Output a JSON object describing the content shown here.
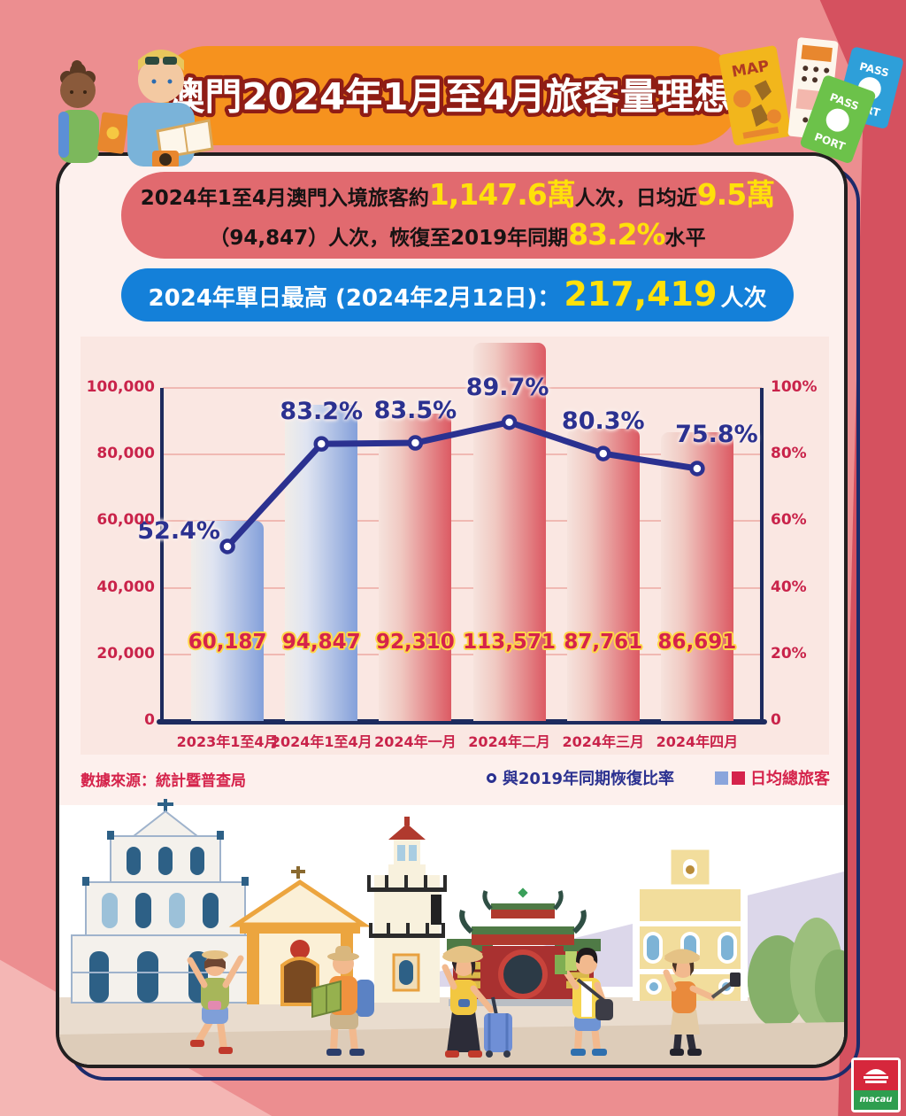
{
  "banner": {
    "title": "澳門2024年1月至4月旅客量理想"
  },
  "summary": {
    "line1_prefix": "2024年1至4月澳門入境旅客約",
    "line1_highlight1": "1,147.6萬",
    "line1_mid": "人次，日均近",
    "line1_highlight2": "9.5萬",
    "line2_prefix": "（94,847）人次，恢復至2019年同期",
    "line2_highlight": "83.2%",
    "line2_suffix": "水平"
  },
  "peak": {
    "label": "2024年單日最高 (2024年2月12日)：",
    "value": "217,419",
    "unit": "人次"
  },
  "chart_data": {
    "type": "bar+line",
    "categories": [
      "2023年1至4月",
      "2024年1至4月",
      "2024年一月",
      "2024年二月",
      "2024年三月",
      "2024年四月"
    ],
    "series": [
      {
        "name": "日均總旅客",
        "type": "bar",
        "values": [
          60187,
          94847,
          92310,
          113571,
          87761,
          86691
        ],
        "labels": [
          "60,187",
          "94,847",
          "92,310",
          "113,571",
          "87,761",
          "86,691"
        ],
        "colors": [
          "blue",
          "blue",
          "red",
          "red",
          "red",
          "red"
        ]
      },
      {
        "name": "與2019年同期恢復比率",
        "type": "line",
        "values": [
          52.4,
          83.2,
          83.5,
          89.7,
          80.3,
          75.8
        ],
        "labels": [
          "52.4%",
          "83.2%",
          "83.5%",
          "89.7%",
          "80.3%",
          "75.8%"
        ]
      }
    ],
    "left_axis": {
      "ticks": [
        "100,000",
        "80,000",
        "60,000",
        "40,000",
        "20,000",
        "0"
      ],
      "max": 100000
    },
    "right_axis": {
      "ticks": [
        "100%",
        "80%",
        "60%",
        "40%",
        "20%",
        "0"
      ],
      "max": 100
    },
    "grid": true,
    "legend_position": "bottom-right",
    "bar_colors": {
      "blue": "#84a0da",
      "red": "#dc5a63"
    },
    "line_color": "#2b3190"
  },
  "footer": {
    "source": "數據來源：統計暨普查局",
    "legend_line": "與2019年同期恢復比率",
    "legend_bars": "日均總旅客"
  },
  "decor": {
    "map_label": "MAP",
    "passport_word1": "PASS",
    "passport_word2": "PORT",
    "logo_text": "macau"
  }
}
